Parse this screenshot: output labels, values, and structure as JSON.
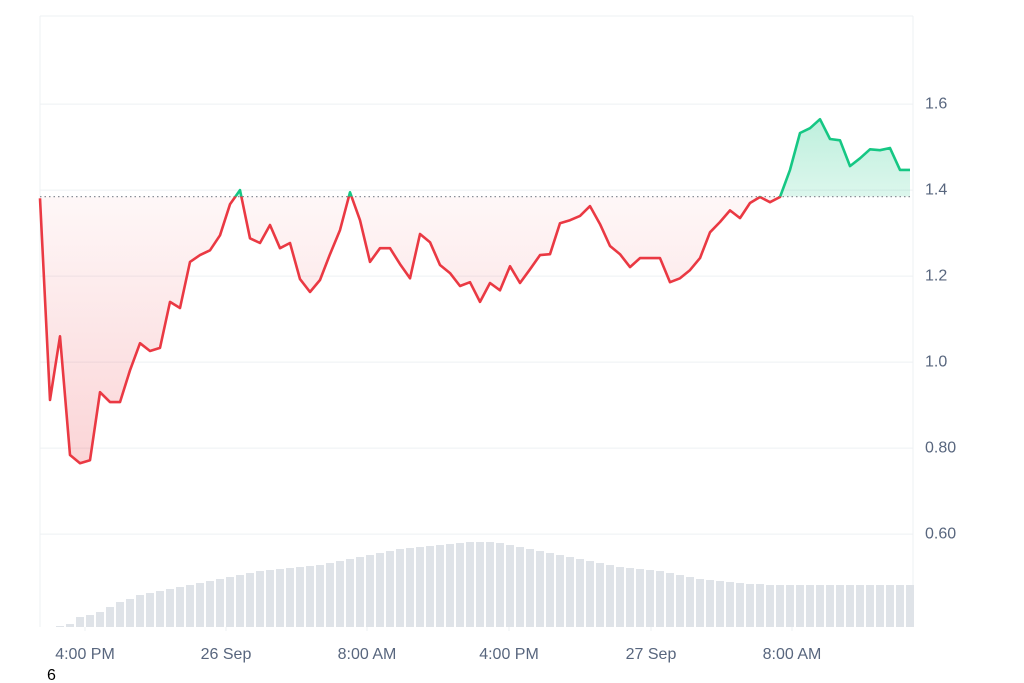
{
  "chart_data": {
    "type": "baseline-line",
    "values": [
      1.381,
      0.912,
      1.06,
      0.784,
      0.765,
      0.772,
      0.93,
      0.907,
      0.907,
      0.981,
      1.044,
      1.026,
      1.033,
      1.14,
      1.126,
      1.233,
      1.249,
      1.26,
      1.295,
      1.367,
      1.4,
      1.288,
      1.277,
      1.319,
      1.265,
      1.277,
      1.193,
      1.163,
      1.191,
      1.251,
      1.307,
      1.395,
      1.33,
      1.233,
      1.265,
      1.265,
      1.228,
      1.195,
      1.298,
      1.279,
      1.226,
      1.207,
      1.177,
      1.186,
      1.14,
      1.184,
      1.167,
      1.223,
      1.184,
      1.216,
      1.249,
      1.251,
      1.323,
      1.33,
      1.34,
      1.363,
      1.321,
      1.27,
      1.251,
      1.221,
      1.242,
      1.242,
      1.242,
      1.186,
      1.195,
      1.214,
      1.242,
      1.302,
      1.326,
      1.353,
      1.335,
      1.37,
      1.384,
      1.372,
      1.384,
      1.447,
      1.533,
      1.544,
      1.565,
      1.519,
      1.516,
      1.456,
      1.474,
      1.495,
      1.493,
      1.498,
      1.447,
      1.447
    ],
    "volume": [
      0,
      0,
      1,
      3,
      10,
      12,
      15,
      20,
      25,
      28,
      32,
      34,
      36,
      38,
      40,
      42,
      44,
      46,
      48,
      50,
      52,
      54,
      56,
      57,
      58,
      59,
      60,
      61,
      62,
      64,
      66,
      68,
      70,
      72,
      74,
      76,
      78,
      79,
      80,
      81,
      82,
      83,
      84,
      85,
      85,
      85,
      84,
      82,
      80,
      78,
      76,
      74,
      72,
      70,
      68,
      66,
      64,
      62,
      60,
      59,
      58,
      57,
      56,
      54,
      52,
      50,
      48,
      47,
      46,
      45,
      44,
      43,
      43,
      42,
      42,
      42,
      42,
      42,
      42,
      42,
      42,
      42,
      42,
      42,
      42,
      42,
      42,
      42
    ],
    "baseline": 1.385,
    "xlim": [
      0,
      87.3
    ],
    "xticks": [
      {
        "value": 4.5,
        "label": "4:00 PM"
      },
      {
        "value": 18.6,
        "label": "26 Sep"
      },
      {
        "value": 32.7,
        "label": "8:00 AM"
      },
      {
        "value": 46.9,
        "label": "4:00 PM"
      },
      {
        "value": 61.1,
        "label": "27 Sep"
      },
      {
        "value": 75.2,
        "label": "8:00 AM"
      }
    ],
    "ylim": [
      0.384,
      1.805
    ],
    "yticks": [
      {
        "value": 0.6,
        "label": "0.60"
      },
      {
        "value": 0.8,
        "label": "0.80"
      },
      {
        "value": 1.0,
        "label": "1.0"
      },
      1.2,
      1.4,
      1.6
    ],
    "y2lim": [
      0,
      100
    ],
    "grid": true,
    "up_color": "#16c784",
    "down_color": "#ea3943",
    "volume_color": "#dfe3e8",
    "footnote": "6"
  }
}
